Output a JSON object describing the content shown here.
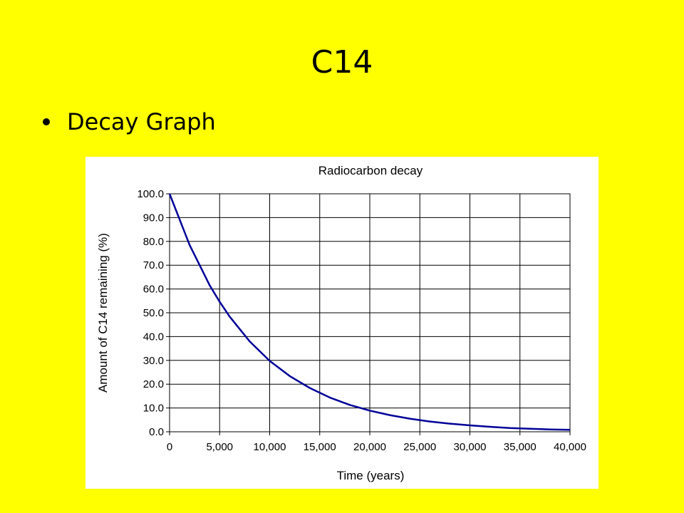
{
  "slide": {
    "title": "C14",
    "bullets": [
      "Decay Graph"
    ]
  },
  "colors": {
    "background": "#ffff00",
    "line": "#000099",
    "grid": "#000000"
  },
  "chart_data": {
    "type": "line",
    "title": "Radiocarbon decay",
    "xlabel": "Time (years)",
    "ylabel": "Amount of C14 remaining (%)",
    "xlim": [
      0,
      40000
    ],
    "ylim": [
      0,
      100
    ],
    "xticks": [
      "0",
      "5,000",
      "10,000",
      "15,000",
      "20,000",
      "25,000",
      "30,000",
      "35,000",
      "40,000"
    ],
    "yticks": [
      "0.0",
      "10.0",
      "20.0",
      "30.0",
      "40.0",
      "50.0",
      "60.0",
      "70.0",
      "80.0",
      "90.0",
      "100.0"
    ],
    "grid": true,
    "legend": "none",
    "series": [
      {
        "x": [
          0,
          2000,
          4000,
          5000,
          6000,
          8000,
          10000,
          12000,
          14000,
          16000,
          18000,
          20000,
          22000,
          24000,
          26000,
          28000,
          30000,
          32000,
          34000,
          36000,
          38000,
          40000
        ],
        "values": [
          100.0,
          78.5,
          61.6,
          54.6,
          48.4,
          38.0,
          29.8,
          23.4,
          18.4,
          14.4,
          11.3,
          8.9,
          7.0,
          5.5,
          4.3,
          3.4,
          2.7,
          2.1,
          1.6,
          1.3,
          1.0,
          0.8
        ]
      }
    ]
  }
}
